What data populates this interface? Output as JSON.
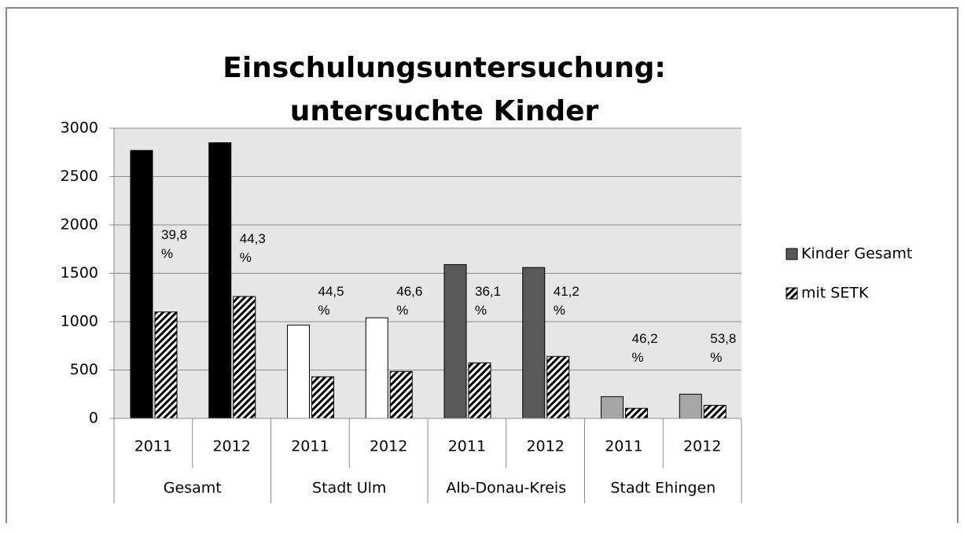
{
  "chart_data": {
    "type": "bar",
    "title": [
      "Einschulungsuntersuchung:",
      "untersuchte Kinder"
    ],
    "categories": [
      "2011",
      "2012",
      "2011",
      "2012",
      "2011",
      "2012",
      "2011",
      "2012"
    ],
    "groups": [
      "Gesamt",
      "Stadt Ulm",
      "Alb-Donau-Kreis",
      "Stadt Ehingen"
    ],
    "series": [
      {
        "name": "Kinder Gesamt",
        "color": "#595959",
        "colors": [
          "#000000",
          "#000000",
          "#ffffff",
          "#ffffff",
          "#595959",
          "#595959",
          "#a6a6a6",
          "#a6a6a6"
        ],
        "values": [
          2770,
          2850,
          965,
          1040,
          1590,
          1560,
          225,
          250
        ]
      },
      {
        "name": "mit SETK",
        "color": "hatch",
        "values": [
          1100,
          1260,
          430,
          485,
          574,
          640,
          104,
          135
        ],
        "value_labels": [
          "39,8 %",
          "44,3 %",
          "44,5 %",
          "46,6 %",
          "36,1 %",
          "41,2 %",
          "46,2 %",
          "53,8 %"
        ]
      }
    ],
    "ylim": [
      0,
      3000
    ],
    "yticks": [
      0,
      500,
      1000,
      1500,
      2000,
      2500,
      3000
    ],
    "grid": true,
    "legend": "right"
  }
}
